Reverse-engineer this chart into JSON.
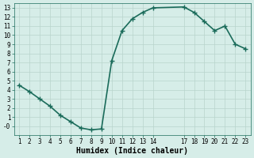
{
  "x": [
    1,
    2,
    3,
    4,
    5,
    6,
    7,
    8,
    9,
    10,
    11,
    12,
    13,
    14,
    17,
    18,
    19,
    20,
    21,
    22,
    23
  ],
  "y": [
    4.5,
    3.8,
    3.0,
    2.2,
    1.2,
    0.5,
    -0.2,
    -0.4,
    -0.3,
    7.2,
    10.5,
    11.8,
    12.5,
    13.0,
    13.1,
    12.5,
    11.5,
    10.5,
    11.0,
    9.0,
    8.5
  ],
  "line_color": "#1a6b5a",
  "marker": "D",
  "marker_size": 2.0,
  "bg_color": "#d6ede8",
  "grid_color": "#b8d4cc",
  "xlabel": "Humidex (Indice chaleur)",
  "xlim": [
    0.5,
    23.5
  ],
  "ylim": [
    -1,
    13.5
  ],
  "yticks": [
    0,
    1,
    2,
    3,
    4,
    5,
    6,
    7,
    8,
    9,
    10,
    11,
    12,
    13
  ],
  "ytick_labels": [
    "-0",
    "1",
    "2",
    "3",
    "4",
    "5",
    "6",
    "7",
    "8",
    "9",
    "10",
    "11",
    "12",
    "13"
  ],
  "xticks": [
    1,
    2,
    3,
    4,
    5,
    6,
    7,
    8,
    9,
    10,
    11,
    12,
    13,
    14,
    17,
    18,
    19,
    20,
    21,
    22,
    23
  ],
  "tick_fontsize": 5.5,
  "xlabel_fontsize": 7.0,
  "line_width": 1.2
}
